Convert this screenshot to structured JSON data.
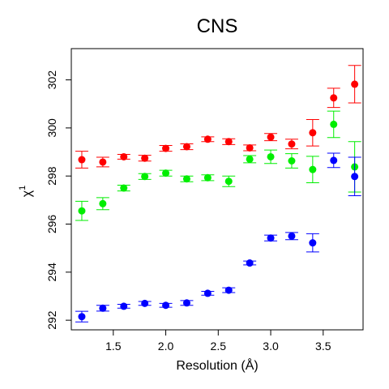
{
  "chart_data": {
    "type": "scatter",
    "title": "CNS",
    "xlabel": "Resolution (Å)",
    "ylabel": "χ",
    "ylabel_superscript": "1",
    "xlim": [
      1.1,
      3.88
    ],
    "ylim": [
      291.6,
      303.3
    ],
    "x_ticks": [
      1.5,
      2.0,
      2.5,
      3.0,
      3.5
    ],
    "x_tick_labels": [
      "1.5",
      "2.0",
      "2.5",
      "3.0",
      "3.5"
    ],
    "y_ticks": [
      292,
      294,
      296,
      298,
      300,
      302
    ],
    "y_tick_labels": [
      "292",
      "294",
      "296",
      "298",
      "300",
      "302"
    ],
    "x": [
      1.2,
      1.4,
      1.6,
      1.8,
      2.0,
      2.2,
      2.4,
      2.6,
      2.8,
      3.0,
      3.2,
      3.4,
      3.6,
      3.8
    ],
    "series": [
      {
        "color": "#ff0000",
        "values": [
          298.68,
          298.58,
          298.8,
          298.74,
          299.15,
          299.22,
          299.53,
          299.43,
          299.17,
          299.62,
          299.33,
          299.8,
          301.25,
          301.82
        ],
        "errors": [
          0.35,
          0.2,
          0.1,
          0.12,
          0.12,
          0.12,
          0.1,
          0.12,
          0.12,
          0.15,
          0.2,
          0.55,
          0.4,
          0.78
        ]
      },
      {
        "color": "#00ee00",
        "values": [
          296.55,
          296.85,
          297.5,
          297.98,
          298.12,
          297.88,
          297.93,
          297.78,
          298.7,
          298.8,
          298.63,
          298.27,
          300.15,
          298.38
        ],
        "errors": [
          0.4,
          0.25,
          0.12,
          0.12,
          0.12,
          0.12,
          0.12,
          0.22,
          0.15,
          0.28,
          0.3,
          0.55,
          0.55,
          1.05
        ]
      },
      {
        "color": "#0000ff",
        "values": [
          292.15,
          292.5,
          292.58,
          292.7,
          292.62,
          292.72,
          293.12,
          293.25,
          294.38,
          295.42,
          295.5,
          295.22,
          298.65,
          297.98
        ],
        "errors": [
          0.22,
          0.12,
          0.08,
          0.08,
          0.08,
          0.1,
          0.08,
          0.1,
          0.08,
          0.12,
          0.15,
          0.38,
          0.3,
          0.8
        ]
      }
    ]
  }
}
